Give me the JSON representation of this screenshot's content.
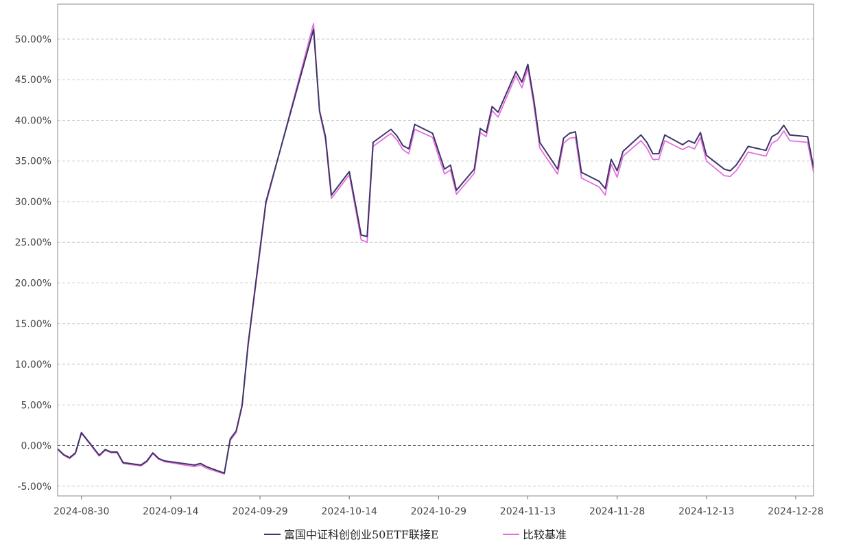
{
  "chart_data": {
    "type": "line",
    "y_tick_labels": [
      "50.00%",
      "45.00%",
      "40.00%",
      "35.00%",
      "30.00%",
      "25.00%",
      "20.00%",
      "15.00%",
      "10.00%",
      "5.00%",
      "0.00%",
      "-5.00%"
    ],
    "x_tick_labels": [
      "2024-08-30",
      "2024-09-14",
      "2024-09-29",
      "2024-10-14",
      "2024-10-29",
      "2024-11-13",
      "2024-11-28",
      "2024-12-13",
      "2024-12-28"
    ],
    "ylim": [
      -6.2,
      54.3
    ],
    "xlim": [
      "2024-08-26",
      "2024-12-31"
    ],
    "grid": true,
    "legend_position": "bottom-center",
    "series": [
      {
        "name": "富国中证科创创业50ETF联接E",
        "color": "#3d3566",
        "points": [
          [
            "2024-08-26",
            -0.4
          ],
          [
            "2024-08-27",
            -1.1
          ],
          [
            "2024-08-28",
            -1.5
          ],
          [
            "2024-08-29",
            -0.9
          ],
          [
            "2024-08-30",
            1.6
          ],
          [
            "2024-09-02",
            -1.2
          ],
          [
            "2024-09-03",
            -0.5
          ],
          [
            "2024-09-04",
            -0.8
          ],
          [
            "2024-09-05",
            -0.8
          ],
          [
            "2024-09-06",
            -2.1
          ],
          [
            "2024-09-09",
            -2.4
          ],
          [
            "2024-09-10",
            -1.9
          ],
          [
            "2024-09-11",
            -0.9
          ],
          [
            "2024-09-12",
            -1.6
          ],
          [
            "2024-09-13",
            -1.9
          ],
          [
            "2024-09-18",
            -2.4
          ],
          [
            "2024-09-19",
            -2.2
          ],
          [
            "2024-09-20",
            -2.6
          ],
          [
            "2024-09-23",
            -3.4
          ],
          [
            "2024-09-24",
            0.8
          ],
          [
            "2024-09-25",
            1.8
          ],
          [
            "2024-09-26",
            5.0
          ],
          [
            "2024-09-27",
            12.5
          ],
          [
            "2024-09-30",
            30.0
          ],
          [
            "2024-10-08",
            51.2
          ],
          [
            "2024-10-09",
            41.2
          ],
          [
            "2024-10-10",
            38.0
          ],
          [
            "2024-10-11",
            30.8
          ],
          [
            "2024-10-14",
            33.7
          ],
          [
            "2024-10-15",
            29.8
          ],
          [
            "2024-10-16",
            25.9
          ],
          [
            "2024-10-17",
            25.7
          ],
          [
            "2024-10-18",
            37.3
          ],
          [
            "2024-10-21",
            38.9
          ],
          [
            "2024-10-22",
            38.1
          ],
          [
            "2024-10-23",
            36.9
          ],
          [
            "2024-10-24",
            36.5
          ],
          [
            "2024-10-25",
            39.5
          ],
          [
            "2024-10-28",
            38.4
          ],
          [
            "2024-10-29",
            36.2
          ],
          [
            "2024-10-30",
            34.0
          ],
          [
            "2024-10-31",
            34.5
          ],
          [
            "2024-11-01",
            31.4
          ],
          [
            "2024-11-04",
            34.0
          ],
          [
            "2024-11-05",
            39.0
          ],
          [
            "2024-11-06",
            38.5
          ],
          [
            "2024-11-07",
            41.7
          ],
          [
            "2024-11-08",
            41.0
          ],
          [
            "2024-11-11",
            46.0
          ],
          [
            "2024-11-12",
            44.7
          ],
          [
            "2024-11-13",
            46.9
          ],
          [
            "2024-11-14",
            42.5
          ],
          [
            "2024-11-15",
            37.3
          ],
          [
            "2024-11-18",
            34.0
          ],
          [
            "2024-11-19",
            37.8
          ],
          [
            "2024-11-20",
            38.4
          ],
          [
            "2024-11-21",
            38.6
          ],
          [
            "2024-11-22",
            33.6
          ],
          [
            "2024-11-25",
            32.5
          ],
          [
            "2024-11-26",
            31.6
          ],
          [
            "2024-11-27",
            35.2
          ],
          [
            "2024-11-28",
            33.8
          ],
          [
            "2024-11-29",
            36.2
          ],
          [
            "2024-12-02",
            38.2
          ],
          [
            "2024-12-03",
            37.3
          ],
          [
            "2024-12-04",
            35.9
          ],
          [
            "2024-12-05",
            35.9
          ],
          [
            "2024-12-06",
            38.2
          ],
          [
            "2024-12-09",
            37.0
          ],
          [
            "2024-12-10",
            37.5
          ],
          [
            "2024-12-11",
            37.2
          ],
          [
            "2024-12-12",
            38.5
          ],
          [
            "2024-12-13",
            35.7
          ],
          [
            "2024-12-16",
            34.0
          ],
          [
            "2024-12-17",
            33.8
          ],
          [
            "2024-12-18",
            34.5
          ],
          [
            "2024-12-19",
            35.6
          ],
          [
            "2024-12-20",
            36.8
          ],
          [
            "2024-12-23",
            36.3
          ],
          [
            "2024-12-24",
            38.0
          ],
          [
            "2024-12-25",
            38.4
          ],
          [
            "2024-12-26",
            39.4
          ],
          [
            "2024-12-27",
            38.2
          ],
          [
            "2024-12-30",
            38.0
          ],
          [
            "2024-12-31",
            34.2
          ]
        ]
      },
      {
        "name": "比较基准",
        "color": "#e46ee0",
        "points": [
          [
            "2024-08-26",
            -0.5
          ],
          [
            "2024-08-27",
            -1.2
          ],
          [
            "2024-08-28",
            -1.6
          ],
          [
            "2024-08-29",
            -1.0
          ],
          [
            "2024-08-30",
            1.5
          ],
          [
            "2024-09-02",
            -1.3
          ],
          [
            "2024-09-03",
            -0.6
          ],
          [
            "2024-09-04",
            -0.9
          ],
          [
            "2024-09-05",
            -0.9
          ],
          [
            "2024-09-06",
            -2.2
          ],
          [
            "2024-09-09",
            -2.5
          ],
          [
            "2024-09-10",
            -2.0
          ],
          [
            "2024-09-11",
            -1.0
          ],
          [
            "2024-09-12",
            -1.7
          ],
          [
            "2024-09-13",
            -2.0
          ],
          [
            "2024-09-18",
            -2.6
          ],
          [
            "2024-09-19",
            -2.4
          ],
          [
            "2024-09-20",
            -2.8
          ],
          [
            "2024-09-23",
            -3.5
          ],
          [
            "2024-09-24",
            0.6
          ],
          [
            "2024-09-25",
            1.6
          ],
          [
            "2024-09-26",
            4.8
          ],
          [
            "2024-09-27",
            12.2
          ],
          [
            "2024-09-30",
            29.7
          ],
          [
            "2024-10-08",
            51.9
          ],
          [
            "2024-10-09",
            41.0
          ],
          [
            "2024-10-10",
            37.6
          ],
          [
            "2024-10-11",
            30.4
          ],
          [
            "2024-10-14",
            33.3
          ],
          [
            "2024-10-15",
            29.3
          ],
          [
            "2024-10-16",
            25.3
          ],
          [
            "2024-10-17",
            25.0
          ],
          [
            "2024-10-18",
            36.8
          ],
          [
            "2024-10-21",
            38.4
          ],
          [
            "2024-10-22",
            37.6
          ],
          [
            "2024-10-23",
            36.4
          ],
          [
            "2024-10-24",
            35.9
          ],
          [
            "2024-10-25",
            38.9
          ],
          [
            "2024-10-28",
            37.9
          ],
          [
            "2024-10-29",
            35.6
          ],
          [
            "2024-10-30",
            33.4
          ],
          [
            "2024-10-31",
            33.9
          ],
          [
            "2024-11-01",
            30.9
          ],
          [
            "2024-11-04",
            33.5
          ],
          [
            "2024-11-05",
            38.5
          ],
          [
            "2024-11-06",
            38.0
          ],
          [
            "2024-11-07",
            41.2
          ],
          [
            "2024-11-08",
            40.4
          ],
          [
            "2024-11-11",
            45.5
          ],
          [
            "2024-11-12",
            44.0
          ],
          [
            "2024-11-13",
            46.4
          ],
          [
            "2024-11-14",
            41.9
          ],
          [
            "2024-11-15",
            36.6
          ],
          [
            "2024-11-18",
            33.4
          ],
          [
            "2024-11-19",
            37.2
          ],
          [
            "2024-11-20",
            37.8
          ],
          [
            "2024-11-21",
            37.9
          ],
          [
            "2024-11-22",
            32.9
          ],
          [
            "2024-11-25",
            31.8
          ],
          [
            "2024-11-26",
            30.8
          ],
          [
            "2024-11-27",
            34.6
          ],
          [
            "2024-11-28",
            33.0
          ],
          [
            "2024-11-29",
            35.6
          ],
          [
            "2024-12-02",
            37.5
          ],
          [
            "2024-12-03",
            36.6
          ],
          [
            "2024-12-04",
            35.2
          ],
          [
            "2024-12-05",
            35.2
          ],
          [
            "2024-12-06",
            37.5
          ],
          [
            "2024-12-09",
            36.4
          ],
          [
            "2024-12-10",
            36.8
          ],
          [
            "2024-12-11",
            36.5
          ],
          [
            "2024-12-12",
            37.9
          ],
          [
            "2024-12-13",
            35.0
          ],
          [
            "2024-12-16",
            33.2
          ],
          [
            "2024-12-17",
            33.1
          ],
          [
            "2024-12-18",
            33.8
          ],
          [
            "2024-12-19",
            34.9
          ],
          [
            "2024-12-20",
            36.1
          ],
          [
            "2024-12-23",
            35.6
          ],
          [
            "2024-12-24",
            37.2
          ],
          [
            "2024-12-25",
            37.6
          ],
          [
            "2024-12-26",
            38.7
          ],
          [
            "2024-12-27",
            37.5
          ],
          [
            "2024-12-30",
            37.3
          ],
          [
            "2024-12-31",
            33.6
          ]
        ]
      }
    ]
  }
}
